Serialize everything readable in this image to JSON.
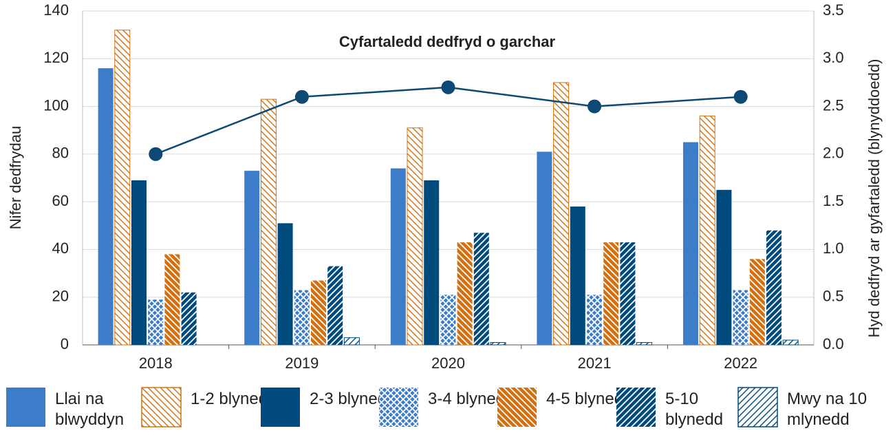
{
  "chart_data": {
    "type": "bar",
    "title": "Cyfartaledd dedfryd o garchar",
    "y_label": "Nifer dedfrydau",
    "y2_label": "Hyd dedfryd ar gyfartaledd (blynyddoedd)",
    "categories": [
      "2018",
      "2019",
      "2020",
      "2021",
      "2022"
    ],
    "series": [
      {
        "name": "Llai na blwyddyn",
        "color": "#3d7cc9",
        "values": [
          116,
          73,
          74,
          81,
          85
        ]
      },
      {
        "name": "1-2 blynedd",
        "color": "#d4700f",
        "fill": "#ffffff",
        "hatch": "\\",
        "values": [
          132,
          103,
          91,
          110,
          96
        ]
      },
      {
        "name": "2-3 blynedd",
        "color": "#004b7c",
        "values": [
          69,
          51,
          69,
          58,
          65
        ]
      },
      {
        "name": "3-4 blynedd",
        "color": "#3d7cc9",
        "hatch": "x",
        "values": [
          19,
          23,
          21,
          21,
          23
        ]
      },
      {
        "name": "4-5 blynedd",
        "color": "#d4700f",
        "hatch": "\\",
        "values": [
          38,
          27,
          43,
          43,
          36
        ]
      },
      {
        "name": "5-10 blynedd",
        "color": "#004b7c",
        "hatch": "/",
        "values": [
          22,
          33,
          47,
          43,
          48
        ]
      },
      {
        "name": "Mwy na 10 mlynedd",
        "color": "#004b7c",
        "fill": "#ffffff",
        "hatch": "/",
        "values": [
          0,
          3,
          1,
          1,
          2
        ]
      },
      {
        "type": "line",
        "axis": "y2",
        "color": "#0d4a73",
        "values": [
          2.0,
          2.6,
          2.7,
          2.5,
          2.6
        ]
      }
    ],
    "ylim": [
      0,
      140
    ],
    "yticks": [
      0,
      20,
      40,
      60,
      80,
      100,
      120,
      140
    ],
    "y2lim": [
      0,
      3.5
    ],
    "y2ticks": [
      {
        "value": 0,
        "label": "0.0"
      },
      0.5,
      {
        "value": 1,
        "label": "1.0"
      },
      1.5,
      {
        "value": 2,
        "label": "2.0"
      },
      2.5,
      {
        "value": 3,
        "label": "3.0"
      },
      3.5
    ],
    "grid": true
  }
}
